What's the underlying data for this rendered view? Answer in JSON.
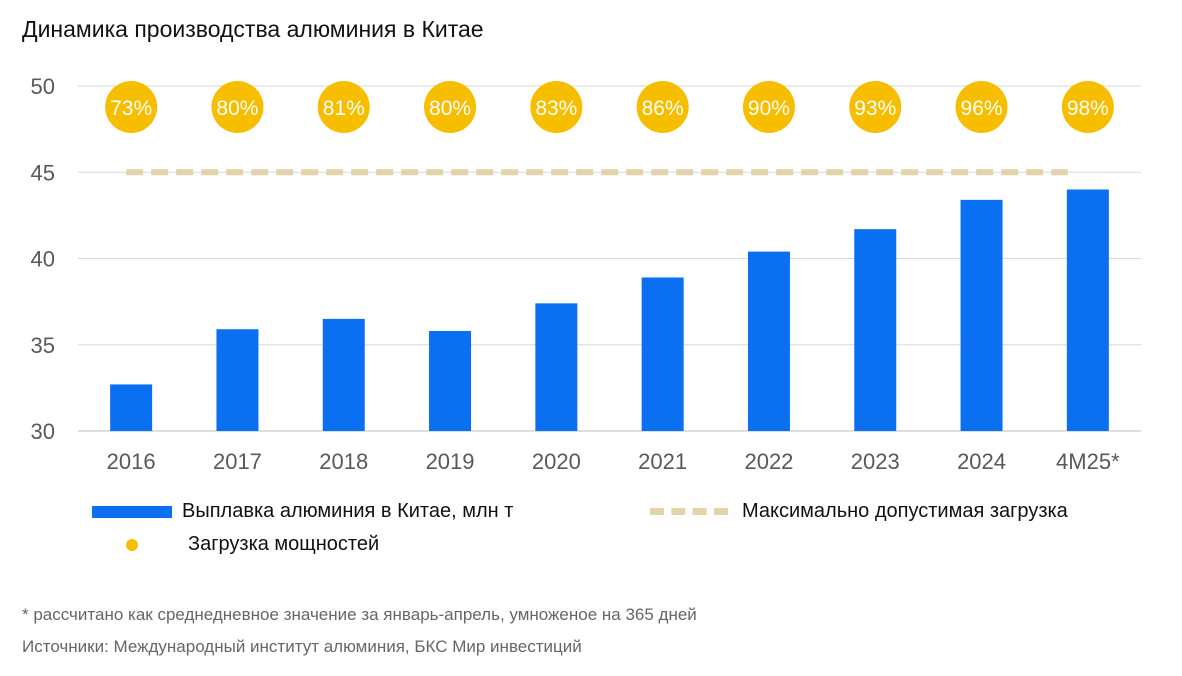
{
  "title": "Динамика производства алюминия в Китае",
  "chart_data": {
    "type": "bar",
    "categories": [
      "2016",
      "2017",
      "2018",
      "2019",
      "2020",
      "2021",
      "2022",
      "2023",
      "2024",
      "4M25*"
    ],
    "series": [
      {
        "name": "Выплавка алюминия в Китае, млн т",
        "values": [
          32.7,
          35.9,
          36.5,
          35.8,
          37.4,
          38.9,
          40.4,
          41.7,
          43.4,
          44.0
        ],
        "color": "#0a6ff0"
      },
      {
        "name": "Максимально допустимая загрузка",
        "type": "line",
        "style": "dashed",
        "values": [
          45,
          45,
          45,
          45,
          45,
          45,
          45,
          45,
          45,
          45
        ],
        "color": "#e2d3a8"
      },
      {
        "name": "Загрузка мощностей",
        "type": "marker-labels",
        "labels": [
          "73%",
          "80%",
          "81%",
          "80%",
          "83%",
          "86%",
          "90%",
          "93%",
          "96%",
          "98%"
        ],
        "color": "#f7be00"
      }
    ],
    "ylim": [
      30,
      50
    ],
    "yticks": [
      30,
      35,
      40,
      45,
      50
    ],
    "grid": true,
    "legend_position": "bottom"
  },
  "legend": {
    "bar_label": "Выплавка алюминия в Китае, млн т",
    "line_label": "Максимально допустимая загрузка",
    "dot_label": "Загрузка мощностей"
  },
  "notes": {
    "footnote": "* рассчитано как среднедневное значение за январь-апрель, умноженое на 365 дней",
    "sources": "Источники: Международный институт алюминия, БКС Мир инвестиций"
  }
}
